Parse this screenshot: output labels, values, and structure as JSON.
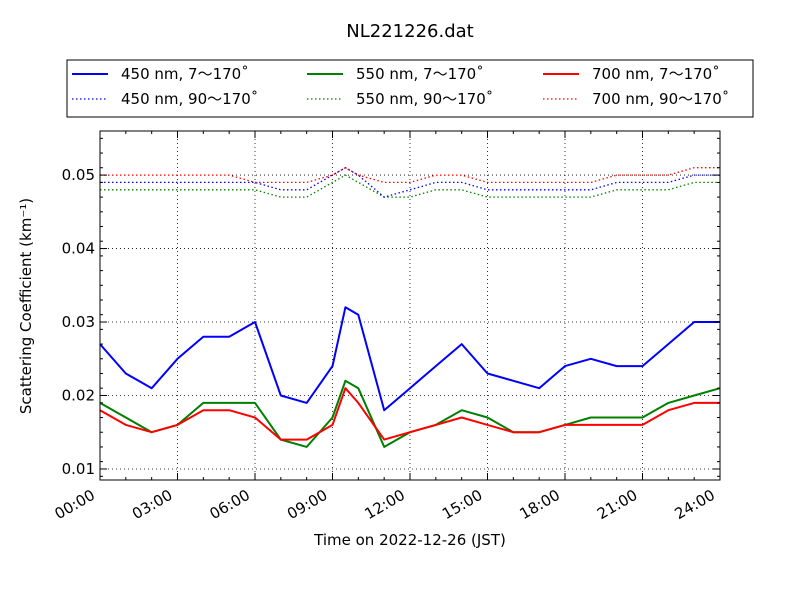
{
  "chart_data": {
    "type": "line",
    "title": "NL221226.dat",
    "xlabel": "Time on 2022-12-26 (JST)",
    "ylabel": "Scattering Coefficient (km⁻¹)",
    "xlim": [
      "00:00",
      "24:00"
    ],
    "ylim": [
      0.0085,
      0.056
    ],
    "x_ticks": [
      "00:00",
      "03:00",
      "06:00",
      "09:00",
      "12:00",
      "15:00",
      "18:00",
      "21:00",
      "24:00"
    ],
    "y_ticks": [
      "0.01",
      "0.02",
      "0.03",
      "0.04",
      "0.05"
    ],
    "grid": true,
    "grid_style": "dotted",
    "legend_placement": "top, above plot, 3 columns",
    "x": [
      "00:00",
      "01:00",
      "02:00",
      "03:00",
      "04:00",
      "05:00",
      "06:00",
      "07:00",
      "08:00",
      "09:00",
      "09:30",
      "10:00",
      "11:00",
      "12:00",
      "13:00",
      "14:00",
      "15:00",
      "16:00",
      "17:00",
      "18:00",
      "19:00",
      "20:00",
      "21:00",
      "22:00",
      "23:00",
      "24:00"
    ],
    "series": [
      {
        "name": "450 nm, 7～170˚",
        "color": "#0000ff",
        "style": "solid",
        "values": [
          0.027,
          0.023,
          0.021,
          0.025,
          0.028,
          0.028,
          0.03,
          0.02,
          0.019,
          0.024,
          0.032,
          0.031,
          0.018,
          0.021,
          0.024,
          0.027,
          0.023,
          0.022,
          0.021,
          0.024,
          0.025,
          0.024,
          0.024,
          0.027,
          0.03,
          0.03
        ]
      },
      {
        "name": "550 nm, 7～170˚",
        "color": "#008000",
        "style": "solid",
        "values": [
          0.019,
          0.017,
          0.015,
          0.016,
          0.019,
          0.019,
          0.019,
          0.014,
          0.013,
          0.017,
          0.022,
          0.021,
          0.013,
          0.015,
          0.016,
          0.018,
          0.017,
          0.015,
          0.015,
          0.016,
          0.017,
          0.017,
          0.017,
          0.019,
          0.02,
          0.021
        ]
      },
      {
        "name": "700 nm, 7～170˚",
        "color": "#ff0000",
        "style": "solid",
        "values": [
          0.018,
          0.016,
          0.015,
          0.016,
          0.018,
          0.018,
          0.017,
          0.014,
          0.014,
          0.016,
          0.021,
          0.019,
          0.014,
          0.015,
          0.016,
          0.017,
          0.016,
          0.015,
          0.015,
          0.016,
          0.016,
          0.016,
          0.016,
          0.018,
          0.019,
          0.019
        ]
      },
      {
        "name": "450 nm, 90～170˚",
        "color": "#0000ff",
        "style": "dotted",
        "values": [
          0.049,
          0.049,
          0.049,
          0.049,
          0.049,
          0.049,
          0.049,
          0.048,
          0.048,
          0.05,
          0.051,
          0.05,
          0.047,
          0.048,
          0.049,
          0.049,
          0.048,
          0.048,
          0.048,
          0.048,
          0.048,
          0.049,
          0.049,
          0.049,
          0.05,
          0.05
        ]
      },
      {
        "name": "550 nm, 90～170˚",
        "color": "#008000",
        "style": "dotted",
        "values": [
          0.048,
          0.048,
          0.048,
          0.048,
          0.048,
          0.048,
          0.048,
          0.047,
          0.047,
          0.049,
          0.05,
          0.049,
          0.047,
          0.047,
          0.048,
          0.048,
          0.047,
          0.047,
          0.047,
          0.047,
          0.047,
          0.048,
          0.048,
          0.048,
          0.049,
          0.049
        ]
      },
      {
        "name": "700 nm, 90～170˚",
        "color": "#ff0000",
        "style": "dotted",
        "values": [
          0.05,
          0.05,
          0.05,
          0.05,
          0.05,
          0.05,
          0.049,
          0.049,
          0.049,
          0.05,
          0.051,
          0.05,
          0.049,
          0.049,
          0.05,
          0.05,
          0.049,
          0.049,
          0.049,
          0.049,
          0.049,
          0.05,
          0.05,
          0.05,
          0.051,
          0.051
        ]
      }
    ]
  }
}
